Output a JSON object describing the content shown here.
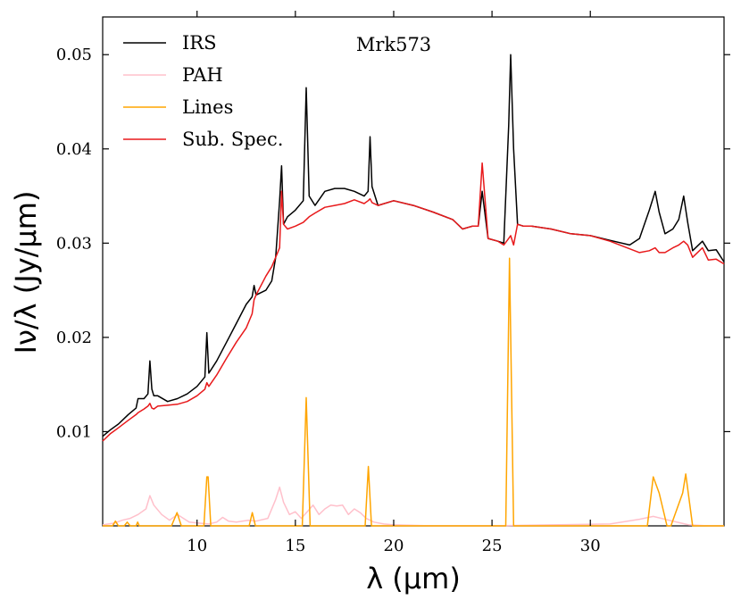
{
  "chart_data": {
    "type": "line",
    "title": "Mrk573",
    "xlabel": "λ (μm)",
    "ylabel": "Iν/λ (Jy/μm)",
    "xlim": [
      5.2,
      36.8
    ],
    "ylim": [
      0.0,
      0.054
    ],
    "x_ticks": [
      10,
      15,
      20,
      25,
      30
    ],
    "x_tick_labels": [
      "10",
      "15",
      "20",
      "25",
      "30"
    ],
    "y_ticks": [
      0.01,
      0.02,
      0.03,
      0.04,
      0.05
    ],
    "y_tick_labels": [
      "0.01",
      "0.02",
      "0.03",
      "0.04",
      "0.05"
    ],
    "legend_position": "top-left",
    "series": [
      {
        "name": "IRS",
        "color": "#000000",
        "x": [
          5.2,
          5.6,
          6.0,
          6.5,
          6.9,
          7.0,
          7.3,
          7.5,
          7.6,
          7.7,
          7.8,
          8.0,
          8.5,
          9.0,
          9.5,
          10.0,
          10.4,
          10.5,
          10.6,
          11.0,
          11.5,
          12.0,
          12.5,
          12.8,
          12.9,
          13.0,
          13.5,
          13.8,
          14.0,
          14.2,
          14.3,
          14.4,
          14.6,
          15.0,
          15.4,
          15.55,
          15.7,
          16.0,
          16.5,
          17.0,
          17.5,
          18.0,
          18.5,
          18.7,
          18.8,
          18.9,
          19.2,
          20.0,
          21.0,
          22.0,
          23.0,
          23.5,
          24.0,
          24.3,
          24.5,
          24.8,
          25.3,
          25.6,
          25.85,
          25.95,
          26.1,
          26.3,
          26.6,
          27.0,
          28.0,
          29.0,
          30.0,
          31.0,
          32.0,
          32.5,
          33.0,
          33.3,
          33.5,
          33.8,
          34.2,
          34.5,
          34.75,
          34.95,
          35.2,
          35.7,
          36.0,
          36.4,
          36.8
        ],
        "values": [
          0.0095,
          0.0102,
          0.0108,
          0.0118,
          0.0125,
          0.0135,
          0.0135,
          0.014,
          0.0175,
          0.0145,
          0.0138,
          0.0138,
          0.0132,
          0.0135,
          0.014,
          0.0148,
          0.0158,
          0.0205,
          0.0162,
          0.0175,
          0.0195,
          0.0215,
          0.0235,
          0.0243,
          0.0255,
          0.0245,
          0.025,
          0.026,
          0.0285,
          0.0345,
          0.0382,
          0.032,
          0.0328,
          0.0335,
          0.0345,
          0.0465,
          0.035,
          0.034,
          0.0355,
          0.0358,
          0.0358,
          0.0355,
          0.035,
          0.0355,
          0.0413,
          0.036,
          0.034,
          0.0345,
          0.034,
          0.0333,
          0.0325,
          0.0315,
          0.0318,
          0.0318,
          0.0355,
          0.0305,
          0.0302,
          0.03,
          0.0425,
          0.05,
          0.04,
          0.032,
          0.0318,
          0.0318,
          0.0315,
          0.031,
          0.0308,
          0.0303,
          0.0298,
          0.0305,
          0.0335,
          0.0355,
          0.0333,
          0.031,
          0.0315,
          0.0325,
          0.035,
          0.0322,
          0.0292,
          0.0302,
          0.0292,
          0.0293,
          0.028
        ]
      },
      {
        "name": "PAH",
        "color": "#ffc0cb",
        "x": [
          5.2,
          5.8,
          6.2,
          6.6,
          7.0,
          7.4,
          7.6,
          7.8,
          8.2,
          8.6,
          9.0,
          9.6,
          10.0,
          10.6,
          11.0,
          11.3,
          11.6,
          12.0,
          12.6,
          13.0,
          13.6,
          14.0,
          14.2,
          14.4,
          14.7,
          15.0,
          15.3,
          15.6,
          15.9,
          16.2,
          16.5,
          16.8,
          17.1,
          17.4,
          17.7,
          18.0,
          18.3,
          18.6,
          19.0,
          19.5,
          20.0,
          22.0,
          25.0,
          28.0,
          31.0,
          32.5,
          33.2,
          34.0,
          35.0,
          36.0,
          36.8
        ],
        "values": [
          0.0001,
          0.0003,
          0.0006,
          0.0008,
          0.0012,
          0.0018,
          0.0032,
          0.0022,
          0.0012,
          0.0006,
          0.0012,
          0.0004,
          0.0003,
          0.0002,
          0.0004,
          0.0009,
          0.0005,
          0.0004,
          0.0006,
          0.0005,
          0.0008,
          0.0028,
          0.0041,
          0.0025,
          0.0012,
          0.0015,
          0.0008,
          0.0015,
          0.0022,
          0.0012,
          0.0018,
          0.0022,
          0.0021,
          0.0022,
          0.0012,
          0.0018,
          0.0014,
          0.0008,
          0.0004,
          0.0002,
          0.0001,
          0.0,
          0.0,
          0.0001,
          0.0002,
          0.0007,
          0.001,
          0.0006,
          0.0001,
          0.0,
          0.0
        ]
      },
      {
        "name": "Lines",
        "color": "#ffa500",
        "x": [
          5.2,
          5.7,
          5.85,
          6.0,
          6.3,
          6.45,
          6.6,
          6.9,
          6.98,
          7.06,
          7.4,
          8.7,
          8.98,
          9.2,
          10.35,
          10.5,
          10.56,
          10.7,
          12.65,
          12.81,
          12.97,
          15.35,
          15.55,
          15.75,
          18.55,
          18.71,
          18.87,
          25.7,
          25.89,
          26.1,
          32.9,
          33.2,
          33.5,
          33.9,
          34.1,
          34.7,
          34.85,
          35.2,
          36.8
        ],
        "values": [
          0.0,
          0.0,
          0.0005,
          0.0,
          0.0,
          0.0004,
          0.0,
          0.0,
          0.0004,
          0.0,
          0.0,
          0.0,
          0.0014,
          0.0,
          0.0,
          0.0052,
          0.0052,
          0.0,
          0.0,
          0.0014,
          0.0,
          0.0,
          0.0136,
          0.0,
          0.0,
          0.0063,
          0.0,
          0.0,
          0.0284,
          0.0,
          0.0,
          0.0052,
          0.0035,
          0.0,
          0.0,
          0.0035,
          0.0055,
          0.0,
          0.0
        ]
      },
      {
        "name": "Sub. Spec.",
        "color": "#e8191b",
        "x": [
          5.2,
          5.6,
          6.0,
          6.5,
          6.9,
          7.0,
          7.3,
          7.5,
          7.6,
          7.7,
          7.8,
          8.0,
          8.5,
          9.0,
          9.5,
          10.0,
          10.4,
          10.5,
          10.6,
          11.0,
          11.5,
          12.0,
          12.5,
          12.8,
          12.9,
          13.0,
          13.5,
          13.8,
          14.0,
          14.2,
          14.3,
          14.4,
          14.6,
          15.0,
          15.4,
          15.55,
          15.7,
          16.0,
          16.5,
          17.0,
          17.5,
          18.0,
          18.5,
          18.7,
          18.8,
          18.9,
          19.2,
          20.0,
          21.0,
          22.0,
          23.0,
          23.5,
          24.0,
          24.3,
          24.5,
          24.8,
          25.3,
          25.6,
          25.85,
          25.95,
          26.1,
          26.3,
          26.6,
          27.0,
          28.0,
          29.0,
          30.0,
          31.0,
          32.0,
          32.5,
          33.0,
          33.3,
          33.5,
          33.8,
          34.2,
          34.5,
          34.75,
          34.95,
          35.2,
          35.7,
          36.0,
          36.4,
          36.8
        ],
        "values": [
          0.009,
          0.0098,
          0.0104,
          0.0112,
          0.0118,
          0.012,
          0.0124,
          0.0127,
          0.013,
          0.0125,
          0.0124,
          0.0127,
          0.0128,
          0.0129,
          0.0132,
          0.0138,
          0.0145,
          0.0152,
          0.0148,
          0.016,
          0.0178,
          0.0195,
          0.021,
          0.0225,
          0.024,
          0.0245,
          0.0265,
          0.0275,
          0.0285,
          0.0295,
          0.0355,
          0.032,
          0.0315,
          0.0318,
          0.0322,
          0.0325,
          0.0328,
          0.0332,
          0.0338,
          0.034,
          0.0342,
          0.0346,
          0.0342,
          0.0345,
          0.0347,
          0.0343,
          0.034,
          0.0345,
          0.034,
          0.0333,
          0.0325,
          0.0315,
          0.0318,
          0.0318,
          0.0385,
          0.0305,
          0.0302,
          0.0298,
          0.0305,
          0.0308,
          0.0298,
          0.032,
          0.0318,
          0.0318,
          0.0315,
          0.031,
          0.0308,
          0.0302,
          0.0294,
          0.029,
          0.0292,
          0.0295,
          0.029,
          0.029,
          0.0295,
          0.0298,
          0.0302,
          0.0298,
          0.0285,
          0.0295,
          0.0282,
          0.0283,
          0.0278
        ]
      }
    ]
  }
}
